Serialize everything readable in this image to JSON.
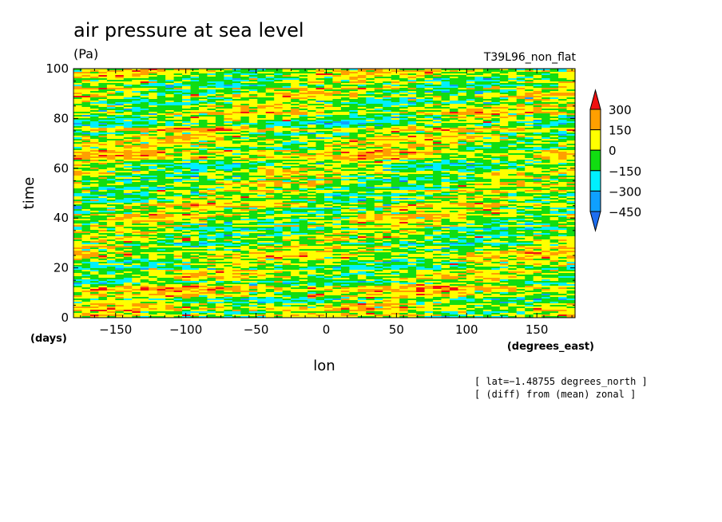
{
  "chart_data": {
    "type": "heatmap",
    "title": "air pressure at sea level",
    "units": "(Pa)",
    "run_label": "T39L96_non_flat",
    "xlabel": "lon",
    "ylabel": "time",
    "x_units": "(degrees_east)",
    "y_units": "(days)",
    "xlim": [
      -180,
      177.2
    ],
    "ylim": [
      0,
      100
    ],
    "x_ticks": [
      -150,
      -100,
      -50,
      0,
      50,
      100,
      150
    ],
    "y_ticks": [
      0,
      20,
      40,
      60,
      80,
      100
    ],
    "x_tick_labels": [
      "−150",
      "−100",
      "−50",
      "0",
      "50",
      "100",
      "150"
    ],
    "y_tick_labels": [
      "0",
      "20",
      "40",
      "60",
      "80",
      "100"
    ],
    "colorbar": {
      "levels": [
        -450,
        -300,
        -150,
        0,
        150,
        300
      ],
      "level_labels": [
        "−450",
        "−300",
        "−150",
        "0",
        "150",
        "300"
      ],
      "colors": [
        "#1e6ef0",
        "#0fa0ff",
        "#00f0ff",
        "#11dd11",
        "#ffff00",
        "#ff9f00",
        "#f01010"
      ],
      "extend": "both"
    },
    "notes": [
      "[ lat=−1.48755 degrees_north ]",
      "[ (diff) from (mean) zonal ]"
    ],
    "grid": false
  }
}
